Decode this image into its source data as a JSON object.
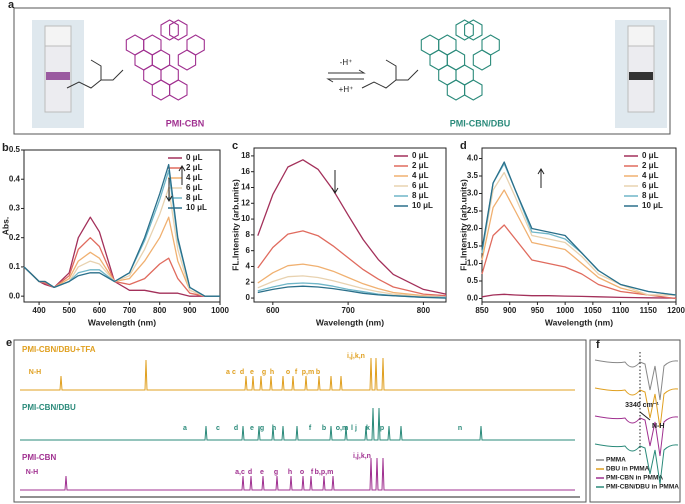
{
  "panel_a": {
    "label": "a",
    "left_name": "PMI-CBN",
    "right_name": "PMI-CBN/DBU",
    "forward": "-H⁺",
    "backward": "+H⁺"
  },
  "chart_data": [
    {
      "type": "line",
      "panel_label": "b",
      "x_label": "Wavelength (nm)",
      "y_label": "Abs.",
      "x": [
        350,
        400,
        420,
        450,
        500,
        530,
        570,
        600,
        650,
        700,
        750,
        800,
        830,
        860,
        900,
        950,
        1000
      ],
      "xlim": [
        350,
        1000
      ],
      "xticks": [
        400,
        500,
        600,
        700,
        800,
        900,
        1000
      ],
      "ylim": [
        -0.02,
        0.5
      ],
      "yticks": [
        {
          "value": 0,
          "label": "0.0"
        },
        {
          "value": 0.1,
          "label": "0.1"
        },
        {
          "value": 0.2,
          "label": "0.2"
        },
        {
          "value": 0.3,
          "label": "0.3"
        },
        {
          "value": 0.4,
          "label": "0.4"
        },
        {
          "value": 0.5,
          "label": "0.5"
        }
      ],
      "series": [
        {
          "name": "0 μL",
          "color": "#a3305a",
          "values": [
            0.1,
            0.05,
            0.04,
            0.03,
            0.08,
            0.2,
            0.27,
            0.22,
            0.05,
            0.02,
            0.02,
            0.01,
            0.01,
            0.01,
            0,
            0,
            0
          ]
        },
        {
          "name": "2 μL",
          "color": "#e06b5e",
          "values": [
            0.1,
            0.05,
            0.045,
            0.03,
            0.07,
            0.16,
            0.2,
            0.17,
            0.05,
            0.04,
            0.06,
            0.11,
            0.13,
            0.06,
            0.01,
            0,
            0
          ]
        },
        {
          "name": "4 μL",
          "color": "#f0b070",
          "values": [
            0.1,
            0.05,
            0.05,
            0.03,
            0.06,
            0.12,
            0.15,
            0.13,
            0.05,
            0.06,
            0.12,
            0.2,
            0.27,
            0.12,
            0.02,
            0,
            0
          ]
        },
        {
          "name": "6 μL",
          "color": "#e8d2b0",
          "values": [
            0.1,
            0.05,
            0.05,
            0.03,
            0.05,
            0.1,
            0.12,
            0.11,
            0.05,
            0.07,
            0.16,
            0.28,
            0.37,
            0.16,
            0.02,
            0,
            0
          ]
        },
        {
          "name": "8 μL",
          "color": "#6fb6c8",
          "values": [
            0.1,
            0.05,
            0.05,
            0.03,
            0.05,
            0.08,
            0.09,
            0.09,
            0.05,
            0.08,
            0.19,
            0.33,
            0.43,
            0.19,
            0.03,
            0,
            0
          ]
        },
        {
          "name": "10 μL",
          "color": "#2a6f8a",
          "values": [
            0.1,
            0.05,
            0.05,
            0.03,
            0.05,
            0.07,
            0.08,
            0.08,
            0.05,
            0.08,
            0.2,
            0.35,
            0.45,
            0.2,
            0.03,
            0,
            0
          ]
        }
      ]
    },
    {
      "type": "line",
      "panel_label": "c",
      "x_label": "Wavelength (nm)",
      "y_label": "FL.Intensity (arb.units)",
      "x": [
        580,
        600,
        620,
        640,
        660,
        680,
        700,
        720,
        740,
        760,
        800,
        830
      ],
      "xlim": [
        575,
        830
      ],
      "xticks": [
        600,
        700,
        800
      ],
      "ylim": [
        -0.5,
        19
      ],
      "yticks": [
        0,
        2,
        4,
        6,
        8,
        10,
        12,
        14,
        16,
        18
      ],
      "series": [
        {
          "name": "0 μL",
          "color": "#a3305a",
          "values": [
            7.9,
            13.1,
            16.6,
            17.5,
            16.3,
            13.7,
            10.5,
            7.4,
            4.9,
            3.0,
            1.1,
            0.5
          ]
        },
        {
          "name": "2 μL",
          "color": "#e06b5e",
          "values": [
            3.8,
            6.4,
            8.1,
            8.5,
            7.9,
            6.6,
            5.1,
            3.6,
            2.4,
            1.4,
            0.5,
            0.3
          ]
        },
        {
          "name": "4 μL",
          "color": "#f0b070",
          "values": [
            1.9,
            3.2,
            4.1,
            4.3,
            4.0,
            3.4,
            2.6,
            1.8,
            1.2,
            0.7,
            0.3,
            0.1
          ]
        },
        {
          "name": "6 μL",
          "color": "#e8d2b0",
          "values": [
            1.3,
            2.1,
            2.7,
            2.8,
            2.6,
            2.2,
            1.7,
            1.2,
            0.8,
            0.5,
            0.2,
            0.1
          ]
        },
        {
          "name": "8 μL",
          "color": "#6fb6c8",
          "values": [
            0.9,
            1.4,
            1.8,
            1.9,
            1.8,
            1.5,
            1.1,
            0.8,
            0.5,
            0.3,
            0.1,
            0.1
          ]
        },
        {
          "name": "10 μL",
          "color": "#2a6f8a",
          "values": [
            0.7,
            1.1,
            1.4,
            1.5,
            1.4,
            1.2,
            0.9,
            0.6,
            0.4,
            0.3,
            0.1,
            0
          ]
        }
      ]
    },
    {
      "type": "line",
      "panel_label": "d",
      "x_label": "Wavelength (nm)",
      "y_label": "FL.Intensity (arb.units)",
      "x": [
        850,
        870,
        890,
        910,
        940,
        970,
        1000,
        1030,
        1060,
        1100,
        1150,
        1200
      ],
      "xlim": [
        850,
        1200
      ],
      "xticks": [
        850,
        900,
        950,
        1000,
        1050,
        1100,
        1150,
        1200
      ],
      "ylim": [
        -0.1,
        4.3
      ],
      "yticks": [
        {
          "value": 0,
          "label": "0.0"
        },
        {
          "value": 0.5,
          "label": "0.5"
        },
        {
          "value": 1,
          "label": "1.0"
        },
        {
          "value": 1.5,
          "label": "1.5"
        },
        {
          "value": 2,
          "label": "2.0"
        },
        {
          "value": 2.5,
          "label": "2.5"
        },
        {
          "value": 3,
          "label": "3.0"
        },
        {
          "value": 3.5,
          "label": "3.5"
        },
        {
          "value": 4,
          "label": "4.0"
        }
      ],
      "series": [
        {
          "name": "0 μL",
          "color": "#a3305a",
          "values": [
            0.05,
            0.1,
            0.12,
            0.1,
            0.08,
            0.08,
            0.07,
            0.06,
            0.05,
            0.03,
            0.02,
            0.01
          ]
        },
        {
          "name": "2 μL",
          "color": "#e06b5e",
          "values": [
            0.7,
            1.8,
            2.1,
            1.7,
            1.1,
            1.0,
            0.9,
            0.7,
            0.4,
            0.2,
            0.1,
            0
          ]
        },
        {
          "name": "4 μL",
          "color": "#f0b070",
          "values": [
            1.1,
            2.6,
            3.1,
            2.5,
            1.6,
            1.5,
            1.4,
            1.0,
            0.6,
            0.3,
            0.1,
            0.1
          ]
        },
        {
          "name": "6 μL",
          "color": "#e8d2b0",
          "values": [
            1.3,
            3.1,
            3.6,
            2.9,
            1.8,
            1.7,
            1.6,
            1.2,
            0.7,
            0.4,
            0.1,
            0.1
          ]
        },
        {
          "name": "8 μL",
          "color": "#6fb6c8",
          "values": [
            1.3,
            3.3,
            3.85,
            3.1,
            1.9,
            1.85,
            1.7,
            1.3,
            0.8,
            0.4,
            0.2,
            0.1
          ]
        },
        {
          "name": "10 μL",
          "color": "#2a6f8a",
          "values": [
            1.4,
            3.3,
            3.9,
            3.1,
            2.0,
            1.9,
            1.8,
            1.3,
            0.8,
            0.4,
            0.2,
            0.1
          ]
        }
      ]
    }
  ],
  "panel_e": {
    "label": "e",
    "traces": [
      {
        "name": "PMI-CBN/DBU+TFA",
        "color": "#e0a020",
        "peaks": [
          "N-H",
          "a",
          "c",
          "d",
          "e",
          "g",
          "h",
          "o",
          "f",
          "p,m",
          "b",
          "i,j,k,n"
        ]
      },
      {
        "name": "PMI-CBN/DBU",
        "color": "#2a8a7a",
        "peaks": [
          "a",
          "c",
          "d",
          "e",
          "g",
          "h",
          "f",
          "b",
          "o,m",
          "l",
          "j",
          "k",
          "p",
          "n"
        ]
      },
      {
        "name": "PMI-CBN",
        "color": "#a03090",
        "peaks": [
          "N-H",
          "a,c",
          "d",
          "e",
          "g",
          "h",
          "o",
          "f",
          "b,p,m",
          "i,j,k,n"
        ]
      }
    ]
  },
  "panel_f": {
    "label": "f",
    "annotation": "3340 cm⁻¹",
    "bond": "N-H",
    "legend": [
      {
        "name": "PMMA",
        "color": "#888888"
      },
      {
        "name": "DBU in PMMA",
        "color": "#e0a020"
      },
      {
        "name": "PMI-CBN in PMMA",
        "color": "#a03090"
      },
      {
        "name": "PMI-CBN/DBU in PMMA",
        "color": "#2a8a7a"
      }
    ]
  }
}
